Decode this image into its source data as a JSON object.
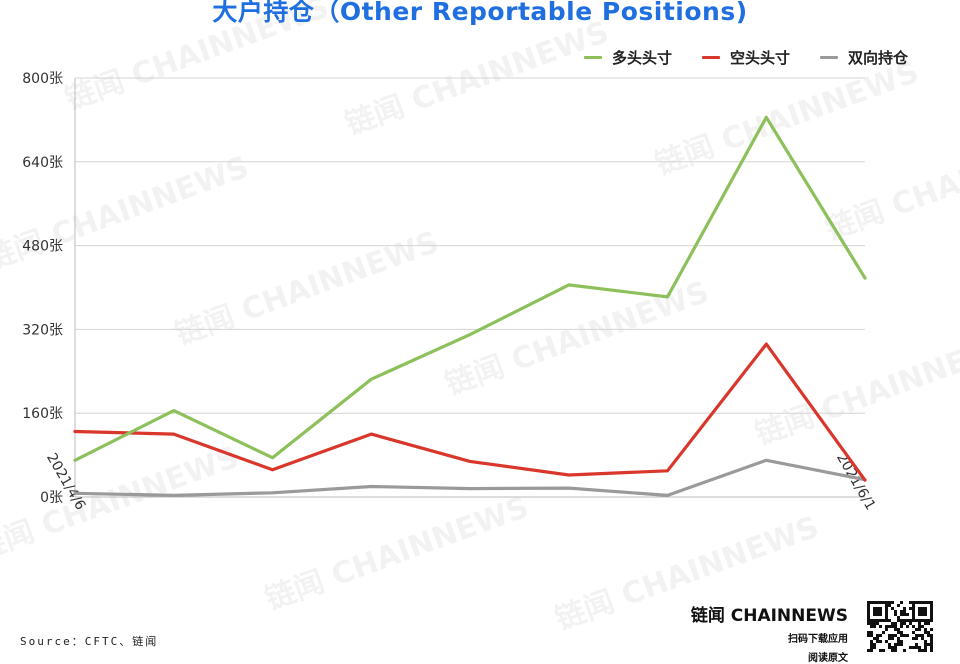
{
  "title": "大户持仓（Other Reportable Positions)",
  "source": "Source：CFTC、链闻",
  "brand": {
    "name": "链闻 CHAINNEWS",
    "sub1": "扫码下载应用",
    "sub2": "阅读原文"
  },
  "watermark": "链闻 CHAINNEWS",
  "legend": {
    "long": "多头头寸",
    "short": "空头头寸",
    "spread": "双向持仓"
  },
  "chart_data": {
    "type": "line",
    "title": "大户持仓（Other Reportable Positions)",
    "x": [
      "2021/4/6",
      "",
      "",
      "",
      "",
      "",
      "",
      "",
      "2021/6/1"
    ],
    "x_tick_labels": [
      "2021/4/6",
      "2021/6/1"
    ],
    "yticks": [
      "0张",
      "160张",
      "320张",
      "480张",
      "640张",
      "800张"
    ],
    "ylim": [
      0,
      800
    ],
    "grid": true,
    "legend_position": "top-right",
    "series": [
      {
        "name": "多头头寸",
        "color": "#8dc05b",
        "values": [
          70,
          165,
          75,
          225,
          310,
          405,
          382,
          725,
          418
        ]
      },
      {
        "name": "空头头寸",
        "color": "#d9372b",
        "values": [
          125,
          120,
          52,
          120,
          68,
          42,
          50,
          292,
          32
        ]
      },
      {
        "name": "双向持仓",
        "color": "#9a9a9a",
        "values": [
          7,
          3,
          8,
          20,
          16,
          17,
          3,
          70,
          33
        ]
      }
    ]
  }
}
